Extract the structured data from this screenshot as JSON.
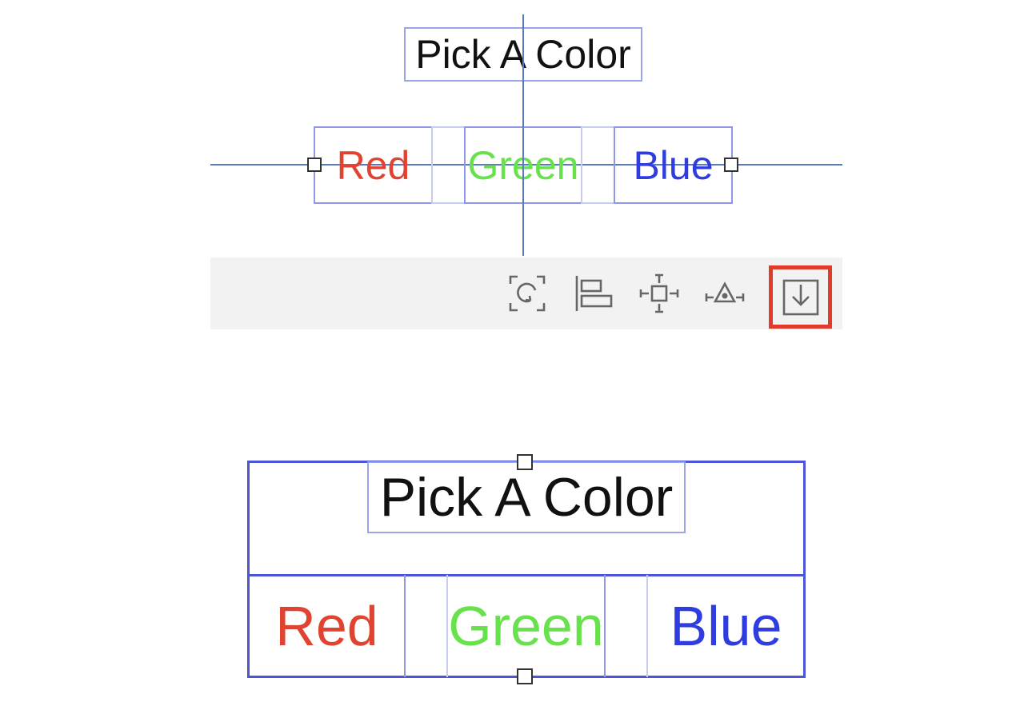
{
  "top_canvas": {
    "title": "Pick A Color",
    "buttons": [
      {
        "label": "Red",
        "color": "#e0432f"
      },
      {
        "label": "Green",
        "color": "#67e24c"
      },
      {
        "label": "Blue",
        "color": "#2f3de0"
      }
    ]
  },
  "toolbar": {
    "icons": [
      "update-frames-icon",
      "align-icon",
      "pin-constraints-icon",
      "resolve-issues-icon",
      "embed-in-stack-icon"
    ],
    "highlighted": "embed-in-stack-icon",
    "highlight_color": "#e13b2c"
  },
  "bottom_canvas": {
    "title": "Pick A Color",
    "buttons": [
      {
        "label": "Red",
        "color": "#e0432f"
      },
      {
        "label": "Green",
        "color": "#67e24c"
      },
      {
        "label": "Blue",
        "color": "#2f3de0"
      }
    ]
  }
}
